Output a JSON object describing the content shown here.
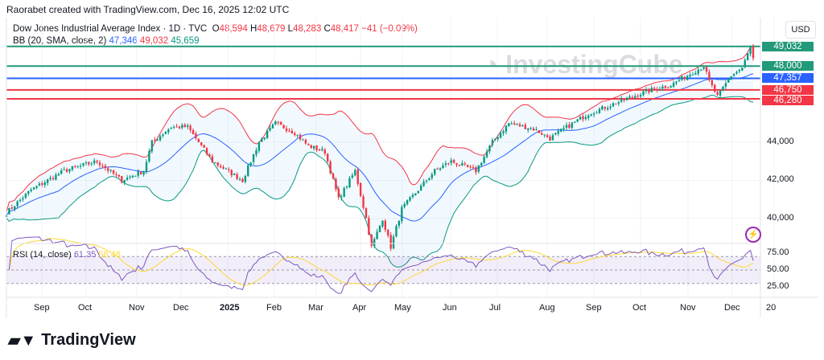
{
  "credit": "Raorabet created with TradingView.com, Dec 16, 2025 12:02 UTC",
  "symbol": {
    "name": "Dow Jones Industrial Average Index · 1D · TVC",
    "o_label": "O",
    "o": "48,594",
    "h_label": "H",
    "h": "48,679",
    "l_label": "L",
    "l": "48,283",
    "c_label": "C",
    "c": "48,417",
    "change": "−41 (−0.09%)"
  },
  "bb": {
    "label": "BB (20, SMA, close, 2)",
    "basis": "47,346",
    "upper": "49,032",
    "lower": "45,659"
  },
  "rsi": {
    "label": "RSI (14, close)",
    "value": "61.35",
    "ma": "58.48"
  },
  "currency": "USD",
  "watermark": "InvestingCube",
  "logo": "TradingView",
  "levels": [
    {
      "label": "49,032",
      "price": 49032,
      "color": "#22997a"
    },
    {
      "label": "48,000",
      "price": 48000,
      "color": "#22997a"
    },
    {
      "label": "47,357",
      "price": 47357,
      "color": "#2962ff"
    },
    {
      "label": "46,750",
      "price": 46750,
      "color": "#f23645"
    },
    {
      "label": "46,280",
      "price": 46280,
      "color": "#f23645"
    }
  ],
  "chart_data": {
    "type": "candlestick",
    "title": "Dow Jones Industrial Average Index · 1D · TVC",
    "y_ticks": [
      "44,000",
      "42,000",
      "40,000"
    ],
    "y_tick_values": [
      44000,
      42000,
      40000
    ],
    "ylim": [
      38000,
      50000
    ],
    "rsi_ticks": [
      "75.00",
      "50.00",
      "25.00"
    ],
    "x_ticks": [
      "Sep",
      "Oct",
      "Nov",
      "Dec",
      "2025",
      "Feb",
      "Mar",
      "Apr",
      "May",
      "Jun",
      "Jul",
      "Aug",
      "Sep",
      "Oct",
      "Nov",
      "Dec",
      "20"
    ],
    "approx_path_days": [
      0,
      9,
      21,
      33,
      42,
      50,
      53,
      60,
      66,
      75,
      86,
      92,
      98,
      105,
      110,
      116,
      121,
      127,
      131,
      133,
      137,
      140,
      144,
      150,
      156,
      162,
      171,
      177,
      183,
      192,
      198,
      203,
      212,
      221,
      230,
      236,
      242,
      248,
      254,
      256,
      259,
      264,
      268,
      271,
      272
    ],
    "approx_path_close": [
      40300,
      41500,
      42500,
      43000,
      42000,
      42500,
      44000,
      44800,
      44800,
      43000,
      42000,
      44000,
      45000,
      44500,
      43800,
      43500,
      41000,
      42500,
      40000,
      38500,
      40000,
      38500,
      40500,
      41500,
      42500,
      43000,
      42500,
      44000,
      45000,
      44700,
      44200,
      44700,
      45500,
      46000,
      46500,
      46800,
      47000,
      47500,
      48000,
      47200,
      46400,
      47500,
      47900,
      49000,
      48417
    ]
  }
}
